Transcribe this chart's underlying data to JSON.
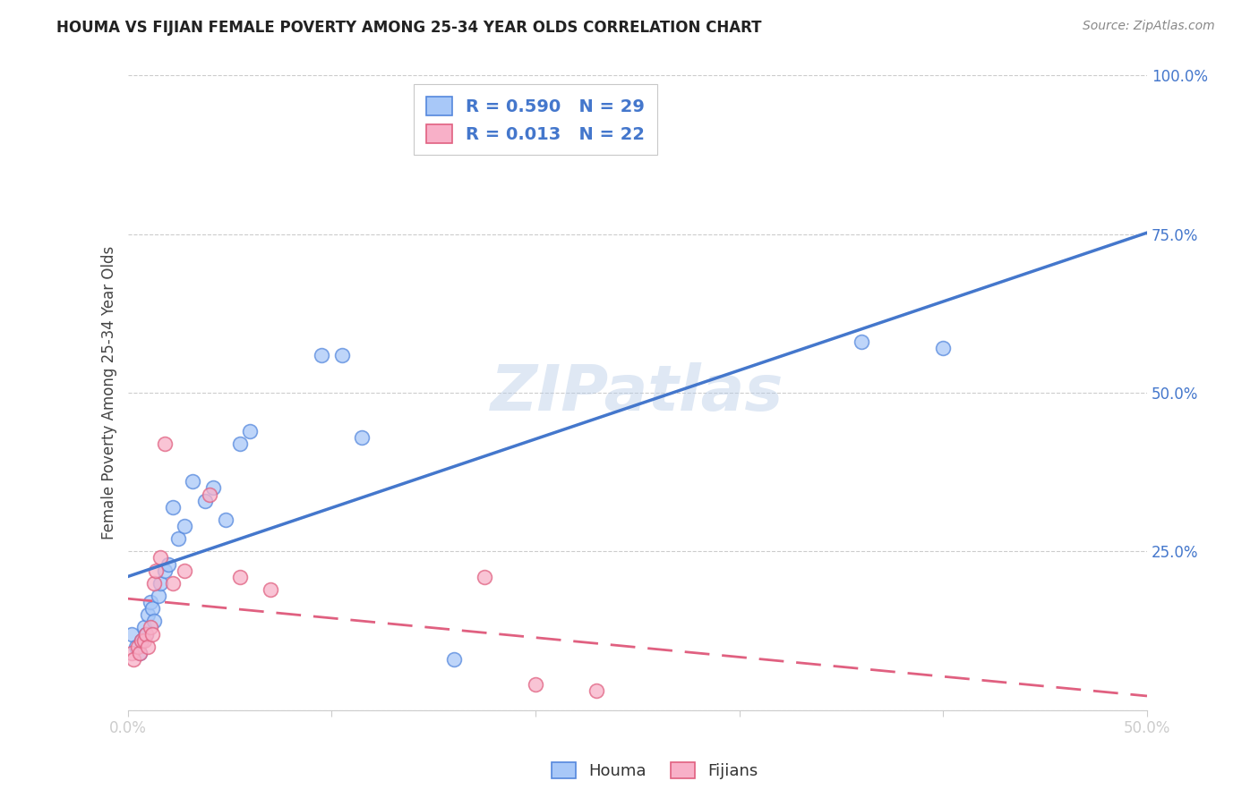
{
  "title": "HOUMA VS FIJIAN FEMALE POVERTY AMONG 25-34 YEAR OLDS CORRELATION CHART",
  "source": "Source: ZipAtlas.com",
  "ylabel": "Female Poverty Among 25-34 Year Olds",
  "xlim": [
    0.0,
    0.5
  ],
  "ylim": [
    0.0,
    1.0
  ],
  "ytick_vals": [
    0.0,
    0.25,
    0.5,
    0.75,
    1.0
  ],
  "ytick_labels": [
    "",
    "25.0%",
    "50.0%",
    "75.0%",
    "100.0%"
  ],
  "xtick_vals": [
    0.0,
    0.1,
    0.2,
    0.3,
    0.4,
    0.5
  ],
  "xtick_labels": [
    "0.0%",
    "",
    "",
    "",
    "",
    "50.0%"
  ],
  "houma_R": "0.590",
  "houma_N": "29",
  "fijian_R": "0.013",
  "fijian_N": "22",
  "houma_color": "#a8c8f8",
  "fijian_color": "#f8b0c8",
  "houma_edge_color": "#5588dd",
  "fijian_edge_color": "#e06080",
  "houma_line_color": "#4477cc",
  "fijian_line_color": "#e06080",
  "label_color": "#4477cc",
  "watermark": "ZIPatlas",
  "houma_x": [
    0.002,
    0.004,
    0.006,
    0.007,
    0.008,
    0.009,
    0.01,
    0.011,
    0.012,
    0.013,
    0.015,
    0.016,
    0.018,
    0.02,
    0.022,
    0.025,
    0.028,
    0.032,
    0.038,
    0.042,
    0.048,
    0.055,
    0.06,
    0.095,
    0.105,
    0.115,
    0.16,
    0.36,
    0.4
  ],
  "houma_y": [
    0.12,
    0.1,
    0.09,
    0.11,
    0.13,
    0.12,
    0.15,
    0.17,
    0.16,
    0.14,
    0.18,
    0.2,
    0.22,
    0.23,
    0.32,
    0.27,
    0.29,
    0.36,
    0.33,
    0.35,
    0.3,
    0.42,
    0.44,
    0.56,
    0.56,
    0.43,
    0.08,
    0.58,
    0.57
  ],
  "fijian_x": [
    0.002,
    0.003,
    0.005,
    0.006,
    0.007,
    0.008,
    0.009,
    0.01,
    0.011,
    0.012,
    0.013,
    0.014,
    0.016,
    0.018,
    0.022,
    0.028,
    0.04,
    0.055,
    0.07,
    0.175,
    0.2,
    0.23
  ],
  "fijian_y": [
    0.09,
    0.08,
    0.1,
    0.09,
    0.11,
    0.11,
    0.12,
    0.1,
    0.13,
    0.12,
    0.2,
    0.22,
    0.24,
    0.42,
    0.2,
    0.22,
    0.34,
    0.21,
    0.19,
    0.21,
    0.04,
    0.03
  ],
  "background_color": "#ffffff",
  "grid_color": "#cccccc"
}
